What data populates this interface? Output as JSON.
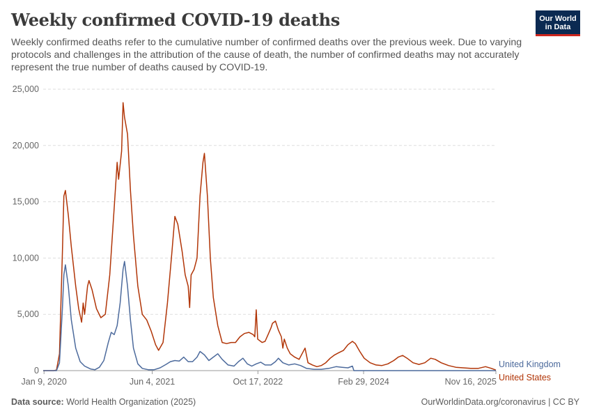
{
  "header": {
    "title": "Weekly confirmed COVID-19 deaths",
    "subtitle": "Weekly confirmed deaths refer to the cumulative number of confirmed deaths over the previous week. Due to varying protocols and challenges in the attribution of the cause of death, the number of confirmed deaths may not accurately represent the true number of deaths caused by COVID-19."
  },
  "logo": {
    "line1": "Our World",
    "line2": "in Data"
  },
  "footer": {
    "source_label": "Data source:",
    "source_text": "World Health Organization (2025)",
    "right_text": "OurWorldinData.org/coronavirus | CC BY"
  },
  "colors": {
    "united_states": "#b13507",
    "united_kingdom": "#4c6a9c",
    "grid": "#dddddd",
    "axis": "#999999"
  },
  "chart_data": {
    "type": "line",
    "title": "Weekly confirmed COVID-19 deaths",
    "ylim": [
      0,
      25000
    ],
    "y_ticks": [
      0,
      5000,
      10000,
      15000,
      20000,
      25000
    ],
    "y_tick_labels": [
      "0",
      "5,000",
      "10,000",
      "15,000",
      "20,000",
      "25,000"
    ],
    "x_range": [
      "2020-01-05",
      "2025-11-16"
    ],
    "x_ticks": [
      "2020-01-09",
      "2021-06-04",
      "2022-10-17",
      "2024-02-29",
      "2025-11-16"
    ],
    "x_tick_labels": [
      "Jan 9, 2020",
      "Jun 4, 2021",
      "Oct 17, 2022",
      "Feb 29, 2024",
      "Nov 16, 2025"
    ],
    "grid": "horizontal dashed",
    "legend": "right-end labels",
    "series": [
      {
        "name": "United States",
        "points": [
          [
            "2020-01-05",
            0
          ],
          [
            "2020-02-23",
            0
          ],
          [
            "2020-03-08",
            50
          ],
          [
            "2020-03-22",
            1500
          ],
          [
            "2020-04-05",
            10500
          ],
          [
            "2020-04-12",
            15500
          ],
          [
            "2020-04-19",
            16000
          ],
          [
            "2020-05-03",
            13800
          ],
          [
            "2020-05-17",
            11000
          ],
          [
            "2020-06-07",
            7500
          ],
          [
            "2020-06-21",
            5500
          ],
          [
            "2020-07-05",
            4300
          ],
          [
            "2020-07-12",
            6000
          ],
          [
            "2020-07-19",
            5000
          ],
          [
            "2020-08-02",
            7500
          ],
          [
            "2020-08-09",
            8000
          ],
          [
            "2020-08-23",
            7200
          ],
          [
            "2020-09-13",
            5500
          ],
          [
            "2020-10-04",
            4700
          ],
          [
            "2020-10-25",
            5000
          ],
          [
            "2020-11-15",
            8500
          ],
          [
            "2020-12-06",
            14500
          ],
          [
            "2020-12-20",
            18500
          ],
          [
            "2020-12-27",
            17000
          ],
          [
            "2021-01-10",
            19500
          ],
          [
            "2021-01-17",
            23800
          ],
          [
            "2021-01-24",
            22500
          ],
          [
            "2021-02-07",
            21000
          ],
          [
            "2021-02-21",
            16000
          ],
          [
            "2021-03-07",
            12000
          ],
          [
            "2021-03-28",
            7500
          ],
          [
            "2021-04-18",
            5000
          ],
          [
            "2021-05-09",
            4500
          ],
          [
            "2021-05-30",
            3500
          ],
          [
            "2021-06-20",
            2300
          ],
          [
            "2021-07-04",
            1800
          ],
          [
            "2021-07-25",
            2500
          ],
          [
            "2021-08-15",
            6000
          ],
          [
            "2021-09-05",
            10500
          ],
          [
            "2021-09-19",
            13700
          ],
          [
            "2021-10-03",
            13000
          ],
          [
            "2021-10-24",
            10500
          ],
          [
            "2021-11-07",
            8500
          ],
          [
            "2021-11-21",
            7500
          ],
          [
            "2021-11-28",
            5600
          ],
          [
            "2021-12-05",
            8500
          ],
          [
            "2021-12-19",
            9000
          ],
          [
            "2022-01-02",
            10000
          ],
          [
            "2022-01-16",
            15500
          ],
          [
            "2022-01-30",
            18500
          ],
          [
            "2022-02-06",
            19300
          ],
          [
            "2022-02-20",
            15500
          ],
          [
            "2022-03-06",
            10000
          ],
          [
            "2022-03-20",
            6500
          ],
          [
            "2022-04-10",
            4000
          ],
          [
            "2022-05-01",
            2500
          ],
          [
            "2022-05-22",
            2400
          ],
          [
            "2022-06-12",
            2500
          ],
          [
            "2022-07-03",
            2500
          ],
          [
            "2022-07-24",
            3000
          ],
          [
            "2022-08-14",
            3300
          ],
          [
            "2022-09-04",
            3400
          ],
          [
            "2022-09-25",
            3200
          ],
          [
            "2022-10-02",
            3000
          ],
          [
            "2022-10-09",
            5400
          ],
          [
            "2022-10-16",
            2800
          ],
          [
            "2022-11-06",
            2500
          ],
          [
            "2022-11-20",
            2600
          ],
          [
            "2022-12-04",
            3200
          ],
          [
            "2022-12-18",
            3800
          ],
          [
            "2022-12-25",
            4200
          ],
          [
            "2023-01-08",
            4400
          ],
          [
            "2023-01-22",
            3600
          ],
          [
            "2023-02-05",
            3000
          ],
          [
            "2023-02-12",
            2000
          ],
          [
            "2023-02-19",
            2800
          ],
          [
            "2023-03-05",
            2000
          ],
          [
            "2023-03-19",
            1500
          ],
          [
            "2023-04-09",
            1200
          ],
          [
            "2023-04-30",
            1000
          ],
          [
            "2023-05-14",
            1500
          ],
          [
            "2023-05-28",
            2000
          ],
          [
            "2023-06-11",
            700
          ],
          [
            "2023-07-02",
            500
          ],
          [
            "2023-07-23",
            350
          ],
          [
            "2023-08-13",
            450
          ],
          [
            "2023-09-03",
            700
          ],
          [
            "2023-09-24",
            1100
          ],
          [
            "2023-10-15",
            1400
          ],
          [
            "2023-11-05",
            1600
          ],
          [
            "2023-11-26",
            1800
          ],
          [
            "2023-12-17",
            2300
          ],
          [
            "2024-01-07",
            2600
          ],
          [
            "2024-01-21",
            2400
          ],
          [
            "2024-02-11",
            1700
          ],
          [
            "2024-03-03",
            1100
          ],
          [
            "2024-03-31",
            700
          ],
          [
            "2024-04-28",
            500
          ],
          [
            "2024-05-26",
            450
          ],
          [
            "2024-06-23",
            600
          ],
          [
            "2024-07-21",
            900
          ],
          [
            "2024-08-11",
            1200
          ],
          [
            "2024-09-01",
            1350
          ],
          [
            "2024-09-22",
            1100
          ],
          [
            "2024-10-20",
            700
          ],
          [
            "2024-11-17",
            550
          ],
          [
            "2024-12-15",
            700
          ],
          [
            "2025-01-12",
            1100
          ],
          [
            "2025-02-02",
            1000
          ],
          [
            "2025-03-02",
            700
          ],
          [
            "2025-04-06",
            450
          ],
          [
            "2025-05-11",
            300
          ],
          [
            "2025-06-15",
            250
          ],
          [
            "2025-07-20",
            200
          ],
          [
            "2025-08-24",
            200
          ],
          [
            "2025-09-28",
            350
          ],
          [
            "2025-10-26",
            200
          ],
          [
            "2025-11-16",
            50
          ]
        ]
      },
      {
        "name": "United Kingdom",
        "points": [
          [
            "2020-01-05",
            0
          ],
          [
            "2020-03-08",
            0
          ],
          [
            "2020-03-22",
            700
          ],
          [
            "2020-04-05",
            5500
          ],
          [
            "2020-04-12",
            8500
          ],
          [
            "2020-04-19",
            9400
          ],
          [
            "2020-05-03",
            7500
          ],
          [
            "2020-05-17",
            4500
          ],
          [
            "2020-06-07",
            2000
          ],
          [
            "2020-06-28",
            800
          ],
          [
            "2020-07-19",
            400
          ],
          [
            "2020-08-16",
            150
          ],
          [
            "2020-09-06",
            80
          ],
          [
            "2020-09-27",
            300
          ],
          [
            "2020-10-18",
            900
          ],
          [
            "2020-11-08",
            2500
          ],
          [
            "2020-11-22",
            3400
          ],
          [
            "2020-12-06",
            3200
          ],
          [
            "2020-12-20",
            4000
          ],
          [
            "2021-01-03",
            6000
          ],
          [
            "2021-01-17",
            9000
          ],
          [
            "2021-01-24",
            9700
          ],
          [
            "2021-02-07",
            7500
          ],
          [
            "2021-02-21",
            4500
          ],
          [
            "2021-03-07",
            2000
          ],
          [
            "2021-03-28",
            600
          ],
          [
            "2021-04-18",
            200
          ],
          [
            "2021-05-16",
            80
          ],
          [
            "2021-06-13",
            80
          ],
          [
            "2021-07-11",
            250
          ],
          [
            "2021-08-08",
            550
          ],
          [
            "2021-08-29",
            800
          ],
          [
            "2021-09-19",
            900
          ],
          [
            "2021-10-10",
            850
          ],
          [
            "2021-10-31",
            1200
          ],
          [
            "2021-11-21",
            800
          ],
          [
            "2021-12-12",
            800
          ],
          [
            "2022-01-02",
            1200
          ],
          [
            "2022-01-16",
            1700
          ],
          [
            "2022-02-06",
            1400
          ],
          [
            "2022-02-27",
            900
          ],
          [
            "2022-03-20",
            1200
          ],
          [
            "2022-04-10",
            1500
          ],
          [
            "2022-05-01",
            1000
          ],
          [
            "2022-05-29",
            500
          ],
          [
            "2022-06-26",
            400
          ],
          [
            "2022-07-17",
            800
          ],
          [
            "2022-08-07",
            1100
          ],
          [
            "2022-08-28",
            600
          ],
          [
            "2022-09-18",
            400
          ],
          [
            "2022-10-09",
            600
          ],
          [
            "2022-10-30",
            750
          ],
          [
            "2022-11-20",
            500
          ],
          [
            "2022-12-18",
            500
          ],
          [
            "2023-01-08",
            800
          ],
          [
            "2023-01-22",
            1100
          ],
          [
            "2023-02-12",
            700
          ],
          [
            "2023-03-12",
            500
          ],
          [
            "2023-04-09",
            600
          ],
          [
            "2023-05-07",
            450
          ],
          [
            "2023-06-04",
            200
          ],
          [
            "2023-07-09",
            120
          ],
          [
            "2023-08-13",
            120
          ],
          [
            "2023-09-17",
            200
          ],
          [
            "2023-10-22",
            350
          ],
          [
            "2023-11-19",
            300
          ],
          [
            "2023-12-17",
            250
          ],
          [
            "2024-01-07",
            400
          ],
          [
            "2024-01-14",
            0
          ],
          [
            "2025-11-16",
            0
          ]
        ]
      }
    ]
  }
}
